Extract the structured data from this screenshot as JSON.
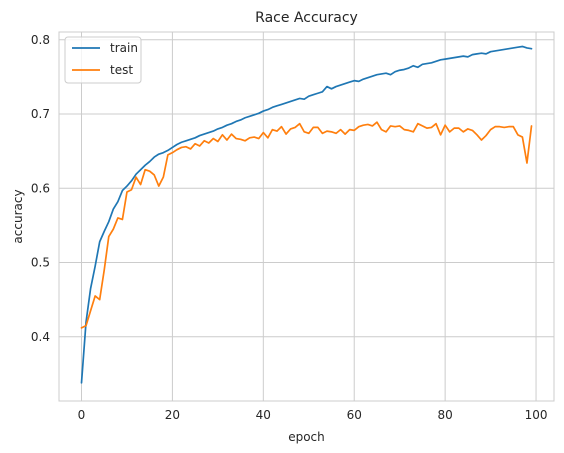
{
  "chart_data": {
    "type": "line",
    "title": "Race Accuracy",
    "xlabel": "epoch",
    "ylabel": "accuracy",
    "xlim": [
      -4.95,
      103.95
    ],
    "ylim": [
      0.3135,
      0.8105
    ],
    "xticks": [
      0,
      20,
      40,
      60,
      80,
      100
    ],
    "yticks": [
      0.4,
      0.5,
      0.6,
      0.7,
      0.8
    ],
    "grid": true,
    "legend_position": "top-left",
    "x": [
      0,
      1,
      2,
      3,
      4,
      5,
      6,
      7,
      8,
      9,
      10,
      11,
      12,
      13,
      14,
      15,
      16,
      17,
      18,
      19,
      20,
      21,
      22,
      23,
      24,
      25,
      26,
      27,
      28,
      29,
      30,
      31,
      32,
      33,
      34,
      35,
      36,
      37,
      38,
      39,
      40,
      41,
      42,
      43,
      44,
      45,
      46,
      47,
      48,
      49,
      50,
      51,
      52,
      53,
      54,
      55,
      56,
      57,
      58,
      59,
      60,
      61,
      62,
      63,
      64,
      65,
      66,
      67,
      68,
      69,
      70,
      71,
      72,
      73,
      74,
      75,
      76,
      77,
      78,
      79,
      80,
      81,
      82,
      83,
      84,
      85,
      86,
      87,
      88,
      89,
      90,
      91,
      92,
      93,
      94,
      95,
      96,
      97,
      98,
      99
    ],
    "series": [
      {
        "name": "train",
        "color": "#1f77b4",
        "values": [
          0.338,
          0.42,
          0.465,
          0.495,
          0.528,
          0.542,
          0.555,
          0.572,
          0.582,
          0.597,
          0.603,
          0.61,
          0.619,
          0.625,
          0.631,
          0.636,
          0.642,
          0.646,
          0.648,
          0.651,
          0.655,
          0.659,
          0.662,
          0.664,
          0.666,
          0.668,
          0.671,
          0.673,
          0.675,
          0.677,
          0.68,
          0.682,
          0.685,
          0.687,
          0.69,
          0.692,
          0.695,
          0.697,
          0.699,
          0.701,
          0.704,
          0.706,
          0.709,
          0.711,
          0.713,
          0.715,
          0.717,
          0.719,
          0.721,
          0.72,
          0.724,
          0.726,
          0.728,
          0.73,
          0.737,
          0.734,
          0.737,
          0.739,
          0.741,
          0.743,
          0.745,
          0.744,
          0.747,
          0.749,
          0.751,
          0.753,
          0.754,
          0.755,
          0.753,
          0.757,
          0.759,
          0.76,
          0.762,
          0.765,
          0.763,
          0.767,
          0.768,
          0.769,
          0.771,
          0.773,
          0.774,
          0.775,
          0.776,
          0.777,
          0.778,
          0.777,
          0.78,
          0.781,
          0.782,
          0.781,
          0.784,
          0.785,
          0.786,
          0.787,
          0.788,
          0.789,
          0.79,
          0.791,
          0.789,
          0.788
        ]
      },
      {
        "name": "test",
        "color": "#ff7f0e",
        "values": [
          0.412,
          0.415,
          0.435,
          0.455,
          0.45,
          0.49,
          0.535,
          0.545,
          0.56,
          0.558,
          0.595,
          0.598,
          0.615,
          0.605,
          0.625,
          0.623,
          0.618,
          0.603,
          0.615,
          0.645,
          0.648,
          0.652,
          0.655,
          0.656,
          0.653,
          0.66,
          0.657,
          0.664,
          0.661,
          0.667,
          0.663,
          0.672,
          0.665,
          0.673,
          0.667,
          0.666,
          0.664,
          0.668,
          0.669,
          0.667,
          0.675,
          0.668,
          0.679,
          0.677,
          0.683,
          0.673,
          0.68,
          0.682,
          0.687,
          0.676,
          0.674,
          0.682,
          0.682,
          0.674,
          0.677,
          0.676,
          0.674,
          0.679,
          0.673,
          0.679,
          0.678,
          0.683,
          0.685,
          0.686,
          0.684,
          0.689,
          0.679,
          0.676,
          0.684,
          0.683,
          0.684,
          0.679,
          0.678,
          0.676,
          0.687,
          0.684,
          0.681,
          0.682,
          0.687,
          0.672,
          0.685,
          0.676,
          0.681,
          0.681,
          0.676,
          0.68,
          0.678,
          0.672,
          0.665,
          0.671,
          0.679,
          0.683,
          0.683,
          0.682,
          0.683,
          0.683,
          0.672,
          0.669,
          0.634,
          0.684
        ]
      }
    ]
  }
}
